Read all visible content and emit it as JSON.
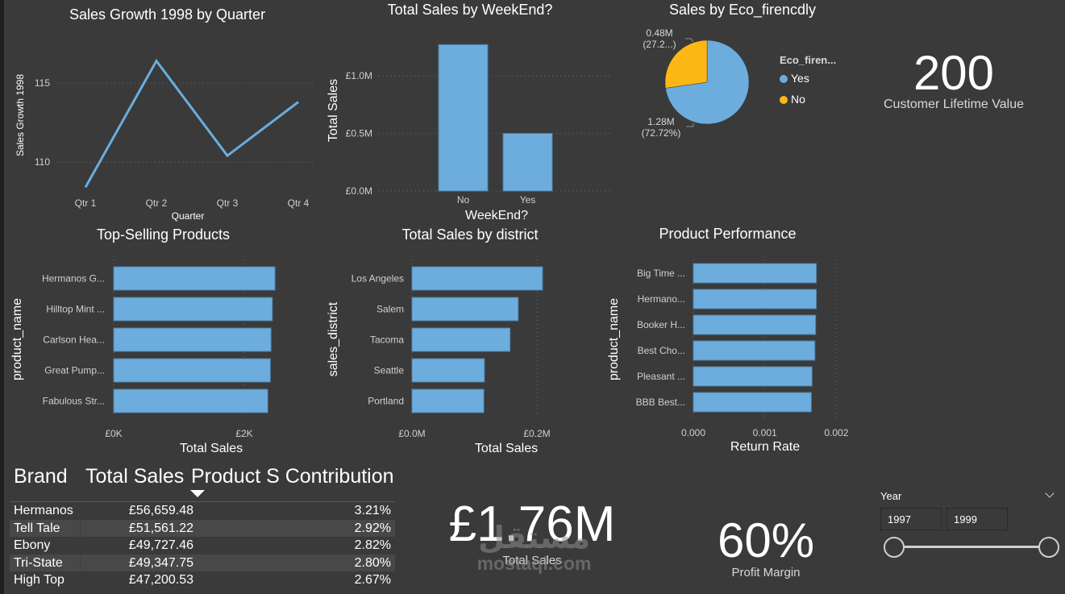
{
  "colors": {
    "background": "#3a3a3a",
    "bar": "#6cadde",
    "line": "#6cadde",
    "pie_yes": "#6cadde",
    "pie_no": "#fdb714",
    "text": "#ffffff"
  },
  "chart_data": [
    {
      "id": "sales_growth",
      "type": "line",
      "title": "Sales Growth 1998 by Quarter",
      "xlabel": "Quarter",
      "ylabel": "Sales Growth 1998",
      "categories": [
        "Qtr 1",
        "Qtr 2",
        "Qtr 3",
        "Qtr 4"
      ],
      "values": [
        108.4,
        116.4,
        110.4,
        113.8
      ],
      "yticks": [
        110,
        115
      ],
      "ytick_labels": [
        "110",
        "115"
      ],
      "ylim": [
        105.5,
        118
      ],
      "grid": true
    },
    {
      "id": "weekend",
      "type": "bar",
      "title": "Total Sales by WeekEnd?",
      "xlabel": "WeekEnd?",
      "ylabel": "Total Sales",
      "categories": [
        "No",
        "Yes"
      ],
      "values": [
        1.27,
        0.5
      ],
      "unit": "M GBP",
      "yticks": [
        0,
        0.5,
        1.0
      ],
      "ytick_labels": [
        "£0.0M",
        "£0.5M",
        "£1.0M"
      ],
      "ylim": [
        0,
        1.3
      ],
      "grid": true
    },
    {
      "id": "eco",
      "type": "pie",
      "title": "Sales by Eco_firencdly",
      "legend_title": "Eco_firen...",
      "legend_position": "right",
      "slices": [
        {
          "name": "Yes",
          "value": 1.28,
          "percent": 72.72,
          "label_value": "1.28M",
          "label_pct": "(72.72%)"
        },
        {
          "name": "No",
          "value": 0.48,
          "percent": 27.28,
          "label_value": "0.48M",
          "label_pct": "(27.2...)"
        }
      ]
    },
    {
      "id": "top_products",
      "type": "bar",
      "orientation": "horizontal",
      "title": "Top-Selling Products",
      "xlabel": "Total Sales",
      "ylabel": "product_name",
      "categories": [
        "Hermanos G...",
        "Hilltop Mint ...",
        "Carlson Hea...",
        "Great Pump...",
        "Fabulous Str..."
      ],
      "values": [
        2.47,
        2.43,
        2.41,
        2.4,
        2.36
      ],
      "unit": "K GBP",
      "xticks": [
        0,
        2
      ],
      "xtick_labels": [
        "£0K",
        "£2K"
      ],
      "xlim": [
        0,
        2.9
      ],
      "grid": true
    },
    {
      "id": "district",
      "type": "bar",
      "orientation": "horizontal",
      "title": "Total Sales by district",
      "xlabel": "Total Sales",
      "ylabel": "sales_district",
      "categories": [
        "Los Angeles",
        "Salem",
        "Tacoma",
        "Seattle",
        "Portland"
      ],
      "values": [
        0.209,
        0.17,
        0.157,
        0.116,
        0.115
      ],
      "unit": "M GBP",
      "xticks": [
        0,
        0.2
      ],
      "xtick_labels": [
        "£0.0M",
        "£0.2M"
      ],
      "xlim": [
        0,
        0.25
      ],
      "grid": true
    },
    {
      "id": "product_performance",
      "type": "bar",
      "orientation": "horizontal",
      "title": "Product Performance",
      "xlabel": "Return Rate",
      "ylabel": "product_name",
      "categories": [
        "Big Time ...",
        "Hermano...",
        "Booker H...",
        "Best Cho...",
        "Pleasant ...",
        "BBB Best..."
      ],
      "values": [
        0.00172,
        0.00172,
        0.00171,
        0.0017,
        0.00166,
        0.00165
      ],
      "xticks": [
        0,
        0.001,
        0.002
      ],
      "xtick_labels": [
        "0.000",
        "0.001",
        "0.002"
      ],
      "xlim": [
        0,
        0.002
      ],
      "grid": true
    }
  ],
  "kpis": {
    "clv": {
      "value": "200",
      "label": "Customer Lifetime Value"
    },
    "total_sales": {
      "value": "£1.76M",
      "label": "Total Sales"
    },
    "profit_margin": {
      "value": "60%",
      "label": "Profit Margin"
    }
  },
  "table": {
    "headers": [
      "Brand",
      "Total Sales",
      "Product S Contribution"
    ],
    "sort_column": "Product S Contribution",
    "sort_direction": "descending",
    "rows": [
      {
        "brand": "Hermanos",
        "sales": "£56,659.48",
        "contribution": "3.21%"
      },
      {
        "brand": "Tell Tale",
        "sales": "£51,561.22",
        "contribution": "2.92%"
      },
      {
        "brand": "Ebony",
        "sales": "£49,727.46",
        "contribution": "2.82%"
      },
      {
        "brand": "Tri-State",
        "sales": "£49,347.75",
        "contribution": "2.80%"
      },
      {
        "brand": "High Top",
        "sales": "£47,200.53",
        "contribution": "2.67%"
      }
    ]
  },
  "slicer": {
    "title": "Year",
    "min_value": "1997",
    "max_value": "1999",
    "range_start_fraction": 0,
    "range_end_fraction": 1
  },
  "watermark": {
    "arabic": "مستقل",
    "text": "mostaql.com"
  }
}
